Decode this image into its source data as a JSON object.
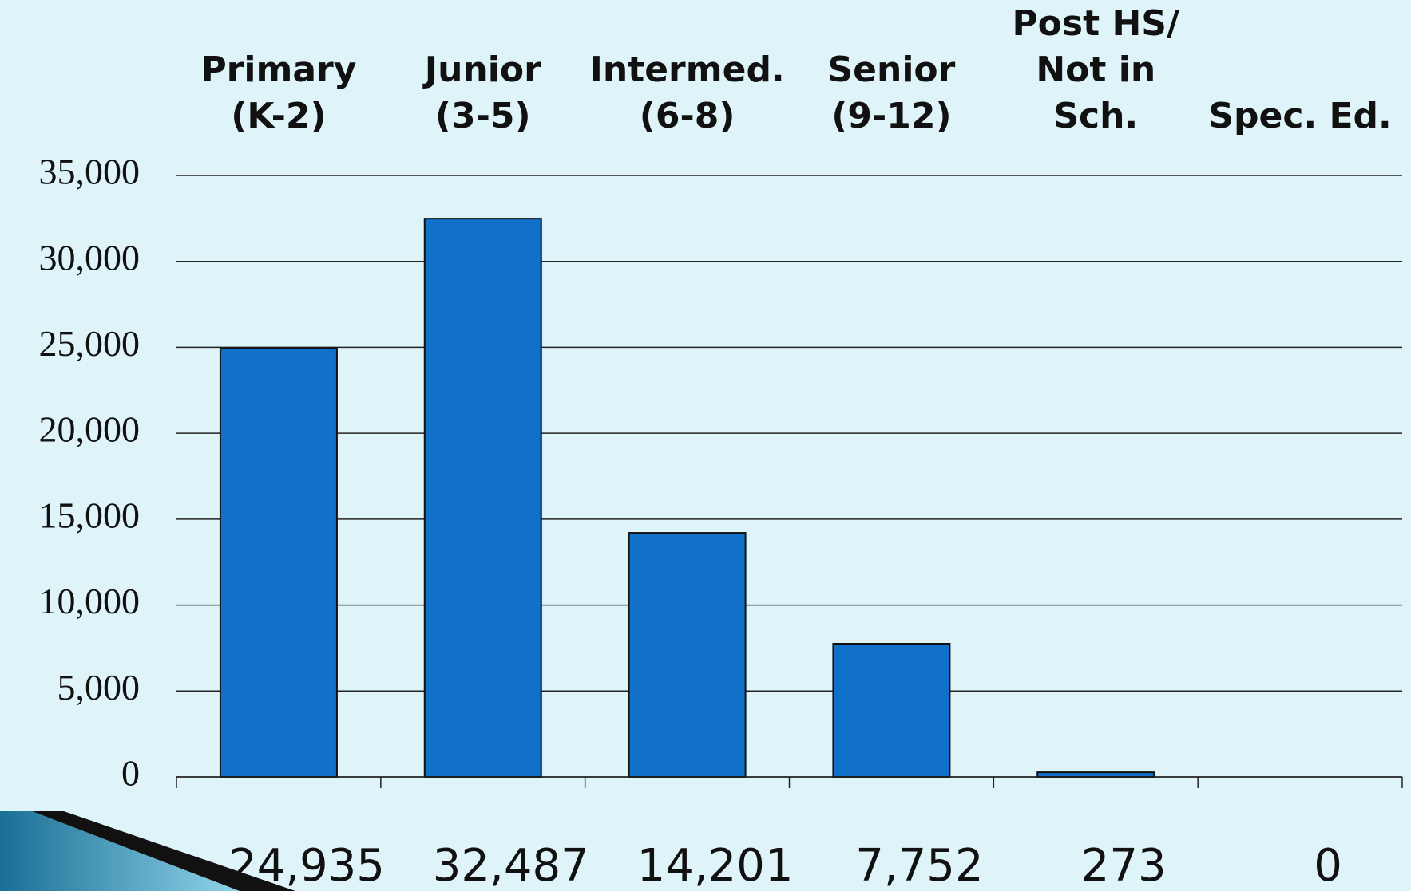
{
  "chart_data": {
    "type": "bar",
    "categories": [
      [
        "Primary",
        "(K-2)"
      ],
      [
        "Junior",
        "(3-5)"
      ],
      [
        "Intermed.",
        "(6-8)"
      ],
      [
        "Senior",
        "(9-12)"
      ],
      [
        "Post HS/",
        "Not in",
        "Sch."
      ],
      [
        "Spec. Ed."
      ]
    ],
    "values": [
      24935,
      32487,
      14201,
      7752,
      273,
      0
    ],
    "value_labels": [
      "24,935",
      "32,487",
      "14,201",
      "7,752",
      "273",
      "0"
    ],
    "color": "#1170c8",
    "ylim": [
      0,
      35000
    ],
    "yticks": [
      0,
      {
        "value": 5000,
        "label": "5,000"
      },
      {
        "value": 10000,
        "label": "10,000"
      },
      {
        "value": 15000,
        "label": "15,000"
      },
      {
        "value": 20000,
        "label": "20,000"
      },
      {
        "value": 25000,
        "label": "25,000"
      },
      {
        "value": 30000,
        "label": "30,000"
      },
      {
        "value": 35000,
        "label": "35,000"
      }
    ],
    "grid": true
  }
}
